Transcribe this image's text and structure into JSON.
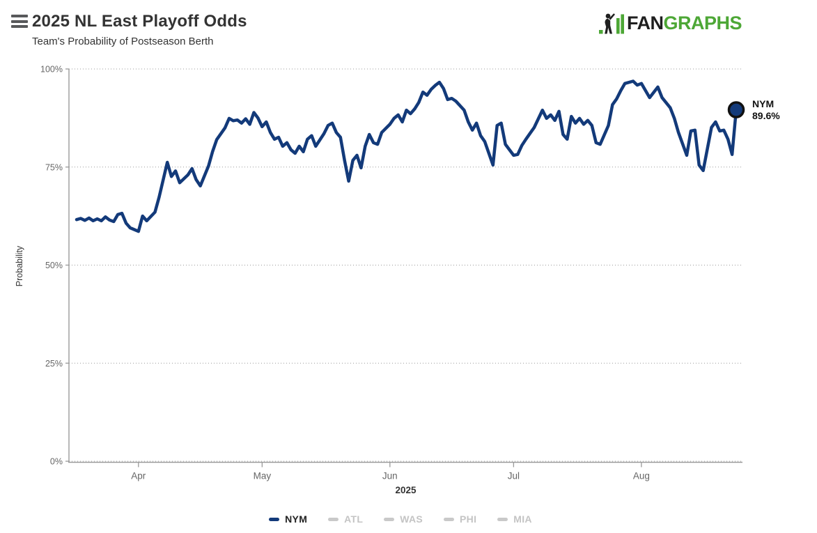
{
  "header": {
    "title": "2025 NL East Playoff Odds",
    "subtitle": "Team's Probability of Postseason Berth",
    "logo": {
      "fan": "FAN",
      "graphs": "GRAPHS"
    }
  },
  "colors": {
    "navy": "#133a7a",
    "marker_stroke": "#111111",
    "fangraphs_green": "#4da736",
    "logo_black": "#1f1f1f",
    "inactive_gray": "#c9c9c9",
    "axis_line": "#999999",
    "gridline": "#999999",
    "tick_label": "#666666"
  },
  "chart_data": {
    "type": "line",
    "title": "2025 NL East Playoff Odds",
    "subtitle": "Team's Probability of Postseason Berth",
    "xlabel": "2025",
    "ylabel": "Probability",
    "ylim": [
      0,
      100
    ],
    "grid": "dotted horizontal gridlines at each y tick",
    "legend_position": "bottom",
    "y_ticks": [
      "0%",
      "25%",
      "50%",
      "75%",
      "100%"
    ],
    "y_tick_values": [
      0,
      25,
      50,
      75,
      100
    ],
    "x_range": [
      "2025-03-17",
      "2025-08-24"
    ],
    "x_ticks": [
      {
        "label": "Apr",
        "date": "2025-04-01"
      },
      {
        "label": "May",
        "date": "2025-05-01"
      },
      {
        "label": "Jun",
        "date": "2025-06-01"
      },
      {
        "label": "Jul",
        "date": "2025-07-01"
      },
      {
        "label": "Aug",
        "date": "2025-08-01"
      }
    ],
    "end_label": {
      "team": "NYM",
      "value": "89.6%"
    },
    "series": [
      {
        "name": "NYM",
        "color": "#133a7a",
        "visible": true,
        "dates": [
          "2025-03-17",
          "2025-03-18",
          "2025-03-19",
          "2025-03-20",
          "2025-03-21",
          "2025-03-22",
          "2025-03-23",
          "2025-03-24",
          "2025-03-25",
          "2025-03-26",
          "2025-03-27",
          "2025-03-28",
          "2025-03-29",
          "2025-03-30",
          "2025-04-01",
          "2025-04-02",
          "2025-04-03",
          "2025-04-05",
          "2025-04-06",
          "2025-04-08",
          "2025-04-09",
          "2025-04-10",
          "2025-04-11",
          "2025-04-13",
          "2025-04-14",
          "2025-04-15",
          "2025-04-16",
          "2025-04-18",
          "2025-04-19",
          "2025-04-20",
          "2025-04-22",
          "2025-04-23",
          "2025-04-24",
          "2025-04-25",
          "2025-04-26",
          "2025-04-27",
          "2025-04-28",
          "2025-04-29",
          "2025-04-30",
          "2025-05-01",
          "2025-05-02",
          "2025-05-03",
          "2025-05-04",
          "2025-05-05",
          "2025-05-06",
          "2025-05-07",
          "2025-05-08",
          "2025-05-09",
          "2025-05-10",
          "2025-05-11",
          "2025-05-12",
          "2025-05-13",
          "2025-05-14",
          "2025-05-16",
          "2025-05-17",
          "2025-05-18",
          "2025-05-19",
          "2025-05-20",
          "2025-05-21",
          "2025-05-22",
          "2025-05-23",
          "2025-05-24",
          "2025-05-25",
          "2025-05-26",
          "2025-05-27",
          "2025-05-28",
          "2025-05-29",
          "2025-05-30",
          "2025-06-01",
          "2025-06-02",
          "2025-06-03",
          "2025-06-04",
          "2025-06-05",
          "2025-06-06",
          "2025-06-07",
          "2025-06-08",
          "2025-06-09",
          "2025-06-10",
          "2025-06-11",
          "2025-06-12",
          "2025-06-13",
          "2025-06-14",
          "2025-06-15",
          "2025-06-16",
          "2025-06-17",
          "2025-06-19",
          "2025-06-20",
          "2025-06-21",
          "2025-06-22",
          "2025-06-23",
          "2025-06-24",
          "2025-06-26",
          "2025-06-27",
          "2025-06-28",
          "2025-06-29",
          "2025-07-01",
          "2025-07-02",
          "2025-07-03",
          "2025-07-04",
          "2025-07-06",
          "2025-07-08",
          "2025-07-09",
          "2025-07-10",
          "2025-07-11",
          "2025-07-12",
          "2025-07-13",
          "2025-07-14",
          "2025-07-15",
          "2025-07-16",
          "2025-07-17",
          "2025-07-18",
          "2025-07-19",
          "2025-07-20",
          "2025-07-21",
          "2025-07-22",
          "2025-07-24",
          "2025-07-25",
          "2025-07-26",
          "2025-07-27",
          "2025-07-28",
          "2025-07-30",
          "2025-07-31",
          "2025-08-01",
          "2025-08-02",
          "2025-08-03",
          "2025-08-05",
          "2025-08-06",
          "2025-08-08",
          "2025-08-09",
          "2025-08-10",
          "2025-08-12",
          "2025-08-13",
          "2025-08-14",
          "2025-08-15",
          "2025-08-16",
          "2025-08-18",
          "2025-08-19",
          "2025-08-20",
          "2025-08-21",
          "2025-08-22",
          "2025-08-23",
          "2025-08-24"
        ],
        "values": [
          61.6,
          61.9,
          61.4,
          62.0,
          61.3,
          61.8,
          61.3,
          62.3,
          61.5,
          61.1,
          62.9,
          63.2,
          60.7,
          59.5,
          58.6,
          62.5,
          61.3,
          63.5,
          67.3,
          76.2,
          72.6,
          74.0,
          71.0,
          73.0,
          74.6,
          71.8,
          70.2,
          75.3,
          79.0,
          82.0,
          85.0,
          87.4,
          86.8,
          87.0,
          86.2,
          87.3,
          85.9,
          88.9,
          87.5,
          85.3,
          86.5,
          83.8,
          82.1,
          82.6,
          80.3,
          81.2,
          79.4,
          78.5,
          80.3,
          78.9,
          82.1,
          83.0,
          80.3,
          83.5,
          85.6,
          86.2,
          83.8,
          82.6,
          76.7,
          71.4,
          76.7,
          78.0,
          74.8,
          80.3,
          83.3,
          81.2,
          80.8,
          83.8,
          85.9,
          87.4,
          88.3,
          86.5,
          89.5,
          88.6,
          89.8,
          91.5,
          94.1,
          93.3,
          94.8,
          95.8,
          96.6,
          95.0,
          92.2,
          92.5,
          91.8,
          89.5,
          86.5,
          84.4,
          86.2,
          83.0,
          81.5,
          75.5,
          85.6,
          86.2,
          80.8,
          78.0,
          78.2,
          80.5,
          82.1,
          85.1,
          89.5,
          87.4,
          88.3,
          86.9,
          89.2,
          83.3,
          82.1,
          87.9,
          86.2,
          87.4,
          85.9,
          86.9,
          85.6,
          81.2,
          80.8,
          85.6,
          90.9,
          92.4,
          94.5,
          96.3,
          96.9,
          95.9,
          96.3,
          94.5,
          92.7,
          95.4,
          92.7,
          90.1,
          87.4,
          83.8,
          78.0,
          84.2,
          84.4,
          75.5,
          74.1,
          85.1,
          86.5,
          84.2,
          84.4,
          82.1,
          78.2,
          89.6
        ]
      },
      {
        "name": "ATL",
        "visible": false
      },
      {
        "name": "WAS",
        "visible": false
      },
      {
        "name": "PHI",
        "visible": false
      },
      {
        "name": "MIA",
        "visible": false
      }
    ]
  },
  "legend": {
    "items": [
      {
        "label": "NYM",
        "active": true
      },
      {
        "label": "ATL",
        "active": false
      },
      {
        "label": "WAS",
        "active": false
      },
      {
        "label": "PHI",
        "active": false
      },
      {
        "label": "MIA",
        "active": false
      }
    ]
  }
}
